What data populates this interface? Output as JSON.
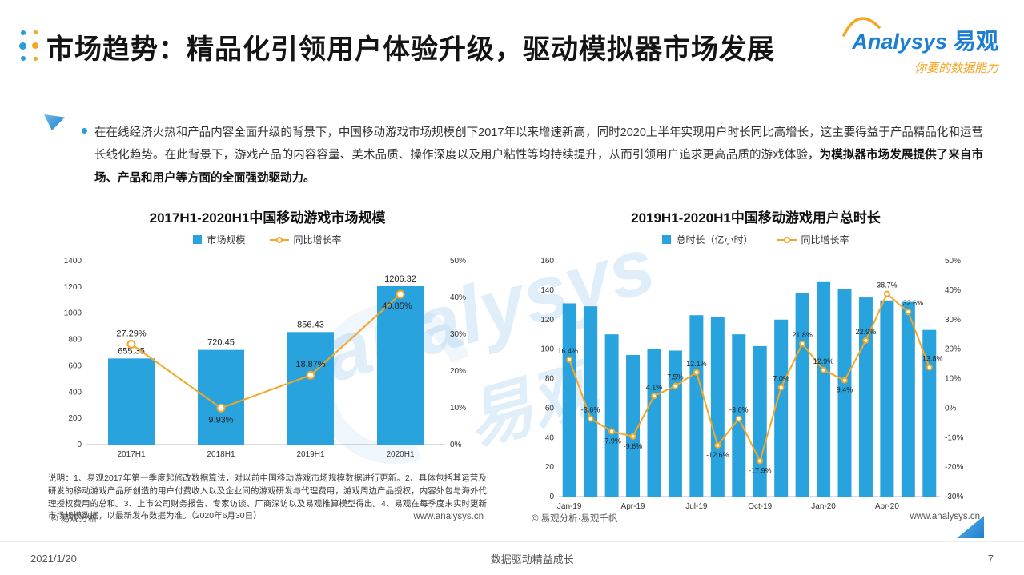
{
  "header": {
    "title": "市场趋势：精品化引领用户体验升级，驱动模拟器市场发展"
  },
  "logo": {
    "brand_en": "Analysys",
    "brand_cn": "易观",
    "tagline": "你要的数据能力"
  },
  "intro": {
    "text": "在在线经济火热和产品内容全面升级的背景下，中国移动游戏市场规模创下2017年以来增速新高，同时2020上半年实现用户时长同比高增长，这主要得益于产品精品化和运营长线化趋势。在此背景下，游戏产品的内容容量、美术品质、操作深度以及用户粘性等均持续提升，从而引领用户追求更高品质的游戏体验，",
    "bold_text": "为模拟器市场发展提供了来自市场、产品和用户等方面的全面强劲驱动力。"
  },
  "watermark": {
    "line1": "analysys",
    "line2": "易观"
  },
  "footer": {
    "date": "2021/1/20",
    "slogan": "数据驱动精益成长",
    "page_number": "7"
  },
  "chart_data": [
    {
      "type": "bar",
      "title": "2017H1-2020H1中国移动游戏市场规模",
      "categories": [
        "2017H1",
        "2018H1",
        "2019H1",
        "2020H1"
      ],
      "series": [
        {
          "name": "市场规模",
          "type": "bar",
          "axis": "left",
          "values": [
            655.35,
            720.45,
            856.43,
            1206.32
          ],
          "value_labels": [
            "655.35",
            "720.45",
            "856.43",
            "1206.32"
          ]
        },
        {
          "name": "同比增长率",
          "type": "line",
          "axis": "right",
          "values": [
            27.29,
            9.93,
            18.87,
            40.85
          ],
          "value_labels": [
            "27.29%",
            "9.93%",
            "18.87%",
            "40.85%"
          ]
        }
      ],
      "left_axis": {
        "min": 0,
        "max": 1400,
        "step": 200,
        "ticks": [
          "0",
          "200",
          "400",
          "600",
          "800",
          "1000",
          "1200",
          "1400"
        ]
      },
      "right_axis": {
        "min": 0,
        "max": 50,
        "step": 10,
        "ticks": [
          "0%",
          "10%",
          "20%",
          "30%",
          "40%",
          "50%"
        ]
      },
      "legend_position": "top",
      "grid": false,
      "notes": "说明：1、易观2017年第一季度起修改数据算法，对以前中国移动游戏市场规模数据进行更新。2、具体包括其运营及研发的移动游戏产品所创造的用户付费收入以及企业间的游戏研发与代理费用，游戏周边产品授权，内容外包与海外代理授权费用的总和。3、上市公司财务报告、专家访谈、厂商深访以及易观推算模型得出。4、易观在每季度末实时更新市场规模数据，以最新发布数据为准。（2020年6月30日）",
      "source": "© 易观分析",
      "site": "www.analysys.cn"
    },
    {
      "type": "bar",
      "title": "2019H1-2020H1中国移动游戏用户总时长",
      "categories": [
        "Jan-19",
        "Feb-19",
        "Mar-19",
        "Apr-19",
        "May-19",
        "Jun-19",
        "Jul-19",
        "Aug-19",
        "Sep-19",
        "Oct-19",
        "Nov-19",
        "Dec-19",
        "Jan-20",
        "Feb-20",
        "Mar-20",
        "Apr-20",
        "May-20",
        "Jun-20"
      ],
      "x_tick_labels": [
        "Jan-19",
        "Apr-19",
        "Jul-19",
        "Oct-19",
        "Jan-20",
        "Apr-20"
      ],
      "series": [
        {
          "name": "总时长（亿小时）",
          "type": "bar",
          "axis": "left",
          "values": [
            131,
            129,
            110,
            96,
            100,
            99,
            123,
            122,
            110,
            102,
            120,
            138,
            146,
            141,
            135,
            133,
            132,
            113
          ]
        },
        {
          "name": "同比增长率",
          "type": "line",
          "axis": "right",
          "values": [
            16.4,
            -3.6,
            -7.9,
            -9.6,
            4.1,
            7.5,
            12.1,
            -12.6,
            -3.6,
            -17.9,
            7.0,
            21.8,
            12.9,
            9.4,
            22.9,
            38.7,
            32.6,
            13.8
          ],
          "value_labels": [
            "16.4%",
            "-3.6%",
            "-7.9%",
            "-9.6%",
            "4.1%",
            "7.5%",
            "12.1%",
            "-12.6%",
            "-3.6%",
            "-17.9%",
            "7.0%",
            "21.8%",
            "12.9%",
            "9.4%",
            "22.9%",
            "38.7%",
            "32.6%",
            "13.8%"
          ]
        }
      ],
      "left_axis": {
        "min": 0,
        "max": 160,
        "step": 20,
        "ticks": [
          "0",
          "20",
          "40",
          "60",
          "80",
          "100",
          "120",
          "140",
          "160"
        ]
      },
      "right_axis": {
        "min": -30,
        "max": 50,
        "step": 10,
        "ticks": [
          "-30%",
          "-20%",
          "-10%",
          "0%",
          "10%",
          "20%",
          "30%",
          "40%",
          "50%"
        ]
      },
      "legend_position": "top",
      "grid": false,
      "source": "© 易观分析·易观千帆",
      "site": "www.analysys.cn"
    }
  ]
}
